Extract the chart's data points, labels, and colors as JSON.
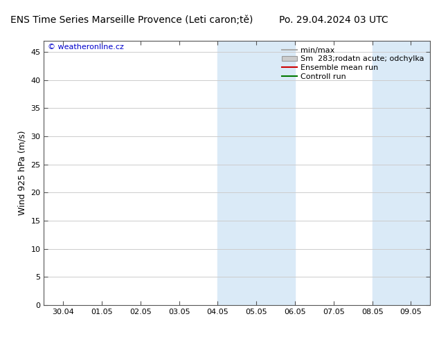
{
  "title_left": "ENS Time Series Marseille Provence (Leti caron;tě)",
  "title_right": "Po. 29.04.2024 03 UTC",
  "ylabel": "Wind 925 hPa (m/s)",
  "watermark": "© weatheronline.cz",
  "watermark_color": "#0000cc",
  "background_color": "#ffffff",
  "plot_bg_color": "#ffffff",
  "shaded_bands": [
    {
      "xmin": 4.0,
      "xmax": 6.0,
      "color": "#daeaf7"
    },
    {
      "xmin": 8.0,
      "xmax": 9.5,
      "color": "#daeaf7"
    }
  ],
  "xtick_labels": [
    "30.04",
    "01.05",
    "02.05",
    "03.05",
    "04.05",
    "05.05",
    "06.05",
    "07.05",
    "08.05",
    "09.05"
  ],
  "xtick_positions": [
    0,
    1,
    2,
    3,
    4,
    5,
    6,
    7,
    8,
    9
  ],
  "ylim": [
    0,
    47
  ],
  "yticks": [
    0,
    5,
    10,
    15,
    20,
    25,
    30,
    35,
    40,
    45
  ],
  "xlim": [
    -0.5,
    9.5
  ],
  "legend_entries": [
    {
      "label": "min/max",
      "color": "#aaaaaa",
      "type": "hline"
    },
    {
      "label": "Sm  283;rodatn acute; odchylka",
      "color": "#cccccc",
      "type": "rect"
    },
    {
      "label": "Ensemble mean run",
      "color": "#cc0000",
      "type": "line"
    },
    {
      "label": "Controll run",
      "color": "#007700",
      "type": "line"
    }
  ],
  "grid_color": "#cccccc",
  "spine_color": "#555555",
  "title_fontsize": 10,
  "axis_label_fontsize": 9,
  "tick_fontsize": 8,
  "legend_fontsize": 8,
  "watermark_fontsize": 8
}
